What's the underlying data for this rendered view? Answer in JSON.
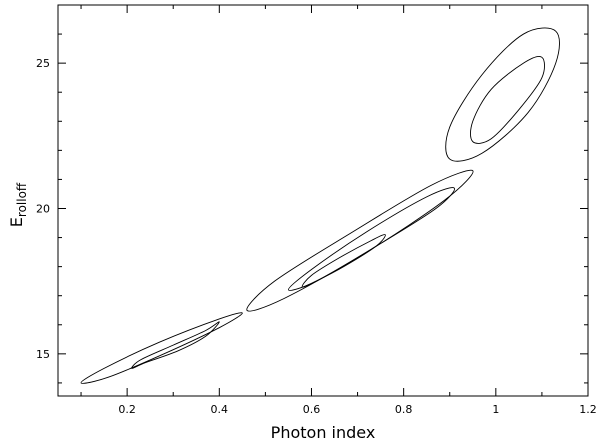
{
  "chart_data": {
    "type": "contour",
    "xlabel": "Photon index",
    "ylabel": "E",
    "ylabel_sub": "rolloff",
    "xlim": [
      0.05,
      1.2
    ],
    "xticks": [
      0.2,
      0.4,
      0.6,
      0.8,
      1,
      1.2
    ],
    "xminor": [
      0.1,
      0.3,
      0.5,
      0.7,
      0.9,
      1.1
    ],
    "ylim": [
      13.55,
      27
    ],
    "yticks": [
      15,
      20,
      25
    ],
    "yminor": [
      14,
      16,
      17,
      18,
      19,
      21,
      22,
      23,
      24,
      26
    ],
    "series": [
      {
        "color": "#000000",
        "x": [
          1.13,
          1.13,
          1.07,
          0.97,
          0.9,
          0.9,
          0.97,
          1.06
        ],
        "values": [
          26.1,
          25.0,
          23.3,
          21.9,
          21.7,
          22.8,
          24.6,
          26.0
        ]
      },
      {
        "color": "#000000",
        "x": [
          1.1,
          1.1,
          1.05,
          0.99,
          0.95,
          0.95,
          0.99,
          1.06
        ],
        "values": [
          25.2,
          24.5,
          23.4,
          22.4,
          22.3,
          23.0,
          24.1,
          25.0
        ]
      },
      {
        "color": "#000000",
        "x": [
          0.95,
          0.89,
          0.72,
          0.54,
          0.46,
          0.52,
          0.69,
          0.86
        ],
        "values": [
          21.3,
          20.3,
          18.5,
          16.9,
          16.5,
          17.5,
          19.2,
          20.8
        ]
      },
      {
        "color": "#000000",
        "x": [
          0.91,
          0.87,
          0.74,
          0.61,
          0.55,
          0.6,
          0.72,
          0.85
        ],
        "values": [
          20.7,
          20.0,
          18.7,
          17.5,
          17.2,
          17.9,
          19.2,
          20.4
        ]
      },
      {
        "color": "#000000",
        "x": [
          0.76,
          0.74,
          0.67,
          0.61,
          0.58,
          0.6,
          0.66,
          0.73
        ],
        "values": [
          19.1,
          18.7,
          18.0,
          17.5,
          17.3,
          17.7,
          18.3,
          18.9
        ]
      },
      {
        "color": "#000000",
        "x": [
          0.45,
          0.4,
          0.28,
          0.16,
          0.1,
          0.15,
          0.27,
          0.4
        ],
        "values": [
          16.4,
          15.9,
          15.0,
          14.2,
          14.0,
          14.5,
          15.4,
          16.2
        ]
      },
      {
        "color": "#000000",
        "x": [
          0.4,
          0.37,
          0.31,
          0.24,
          0.21,
          0.23,
          0.3,
          0.37
        ],
        "values": [
          16.1,
          15.6,
          15.1,
          14.7,
          14.5,
          14.8,
          15.3,
          15.8
        ]
      }
    ]
  }
}
